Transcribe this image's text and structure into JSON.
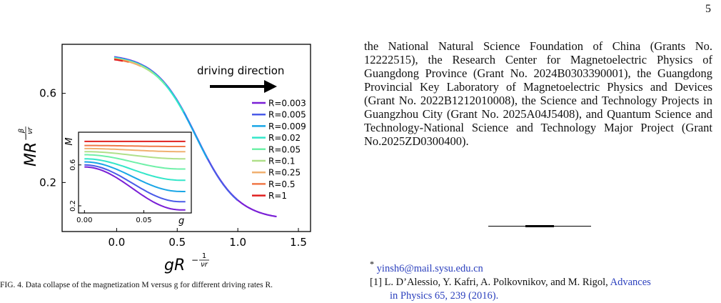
{
  "page_number": "5",
  "acknowledgment_text": "the National Natural Science Foundation of China (Grants No. 12222515), the Research Center for Magnetoelectric Physics of Guangdong Province (Grant No.  2024B0303390001), the Guangdong Provincial Key Laboratory of Magnetoelectric Physics and Devices (Grant No.  2022B1212010008), the Science and Technology Projects in Guangzhou City (Grant No.  2025A04J5408), and Quantum Science and Technology-National Science and Technology Major Project (Grant No.2025ZD0300400).",
  "footnotes": {
    "email_marker": "*",
    "email": "yinsh6@mail.sysu.edu.cn",
    "ref1_number": "[1]",
    "ref1_authors": "L. D’Alessio, Y. Kafri, A. Polkovnikov, and M. Rigol,",
    "ref1_journal": "Advances",
    "ref1_line2": "in Physics 65, 239 (2016)."
  },
  "caption_fragment": "FIG. 4. Data collapse of the magnetization M versus g for different driving rates R.",
  "chart_data": {
    "type": "line",
    "ylabel_base": "MR",
    "ylabel_exp_num": "β",
    "ylabel_exp_den": "νr",
    "ylabel_exp_sign": "−",
    "xlabel_base": "gR",
    "xlabel_exp_num": "1",
    "xlabel_exp_den": "νr",
    "xlabel_exp_sign": "−",
    "xlim": [
      -0.45,
      1.6
    ],
    "ylim": [
      -0.02,
      0.82
    ],
    "xticks": [
      0.0,
      0.5,
      1.0,
      1.5
    ],
    "xtick_labels": [
      "0.0",
      "0.5",
      "1.0",
      "1.5"
    ],
    "yticks": [
      0.2,
      0.6
    ],
    "ytick_labels": [
      "0.2",
      "0.6"
    ],
    "annotation": "driving direction",
    "legend_position": "right",
    "series": [
      {
        "name": "R=0.003",
        "color": "#7a1fd6",
        "xrange": [
          -0.02,
          1.32
        ]
      },
      {
        "name": "R=0.005",
        "color": "#4a5be8",
        "xrange": [
          -0.02,
          1.0
        ]
      },
      {
        "name": "R=0.009",
        "color": "#1aa6e6",
        "xrange": [
          -0.02,
          0.75
        ]
      },
      {
        "name": "R=0.02",
        "color": "#33e6c9",
        "xrange": [
          -0.02,
          0.55
        ]
      },
      {
        "name": "R=0.05",
        "color": "#6ff0a8",
        "xrange": [
          -0.02,
          0.4
        ]
      },
      {
        "name": "R=0.1",
        "color": "#b0e08a",
        "xrange": [
          -0.02,
          0.3
        ]
      },
      {
        "name": "R=0.25",
        "color": "#f0b070",
        "xrange": [
          -0.02,
          0.2
        ]
      },
      {
        "name": "R=0.5",
        "color": "#f07848",
        "xrange": [
          -0.02,
          0.1
        ]
      },
      {
        "name": "R=1",
        "color": "#e02020",
        "xrange": [
          -0.02,
          0.05
        ]
      }
    ],
    "inset": {
      "xlabel": "g",
      "ylabel": "M",
      "xlim": [
        -0.005,
        0.09
      ],
      "ylim": [
        0.13,
        0.92
      ],
      "xticks": [
        0.0,
        0.05
      ],
      "xtick_labels": [
        "0.00",
        "0.05"
      ],
      "yticks": [
        0.2,
        0.6
      ],
      "ytick_labels": [
        "0.2",
        "0.6"
      ],
      "series": [
        {
          "name": "R=0.003",
          "y_start": 0.58,
          "y_end": 0.16
        },
        {
          "name": "R=0.005",
          "y_start": 0.6,
          "y_end": 0.24
        },
        {
          "name": "R=0.009",
          "y_start": 0.63,
          "y_end": 0.34
        },
        {
          "name": "R=0.02",
          "y_start": 0.66,
          "y_end": 0.45
        },
        {
          "name": "R=0.05",
          "y_start": 0.7,
          "y_end": 0.56
        },
        {
          "name": "R=0.1",
          "y_start": 0.73,
          "y_end": 0.66
        },
        {
          "name": "R=0.25",
          "y_start": 0.76,
          "y_end": 0.73
        },
        {
          "name": "R=0.5",
          "y_start": 0.79,
          "y_end": 0.78
        },
        {
          "name": "R=1",
          "y_start": 0.83,
          "y_end": 0.83
        }
      ]
    }
  }
}
